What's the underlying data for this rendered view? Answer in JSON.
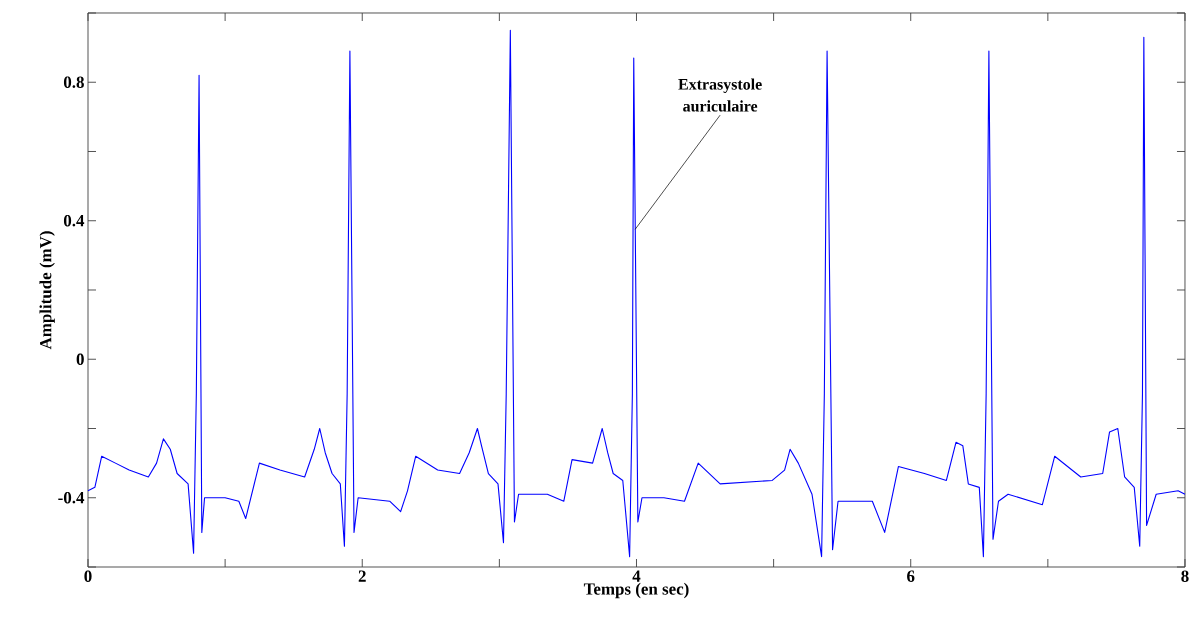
{
  "chart_data": {
    "type": "line",
    "xlabel": "Temps (en sec)",
    "ylabel": "Amplitude (mV)",
    "xlim": [
      0,
      8
    ],
    "ylim": [
      -0.6,
      1.0
    ],
    "xticks": [
      0,
      {
        "value": 1,
        "label": null
      },
      2,
      {
        "value": 3,
        "label": null
      },
      4,
      {
        "value": 5,
        "label": null
      },
      6,
      {
        "value": 7,
        "label": null
      },
      8
    ],
    "yticks": [
      {
        "value": -0.6,
        "label": null
      },
      -0.4,
      {
        "value": -0.2,
        "label": null
      },
      0,
      {
        "value": 0.2,
        "label": null
      },
      0.4,
      {
        "value": 0.6,
        "label": null
      },
      0.8,
      {
        "value": 1.0,
        "label": null
      }
    ],
    "annotations": [
      {
        "text": "Extrasystole auriculaire",
        "x": 3.99,
        "y": 0.375
      }
    ],
    "series": [
      {
        "color": "#0000ff",
        "x": [
          0.0,
          0.05,
          0.1,
          0.2,
          0.3,
          0.44,
          0.5,
          0.55,
          0.6,
          0.65,
          0.73,
          0.77,
          0.79,
          0.81,
          0.83,
          0.85,
          1.0,
          1.1,
          1.15,
          1.2,
          1.25,
          1.4,
          1.58,
          1.65,
          1.69,
          1.73,
          1.78,
          1.84,
          1.87,
          1.89,
          1.91,
          1.94,
          1.97,
          2.2,
          2.28,
          2.33,
          2.39,
          2.55,
          2.71,
          2.78,
          2.84,
          2.87,
          2.92,
          2.99,
          3.03,
          3.05,
          3.08,
          3.11,
          3.14,
          3.35,
          3.47,
          3.53,
          3.68,
          3.75,
          3.79,
          3.83,
          3.9,
          3.95,
          3.97,
          3.98,
          4.01,
          4.04,
          4.2,
          4.35,
          4.45,
          4.61,
          4.99,
          5.08,
          5.12,
          5.18,
          5.28,
          5.35,
          5.37,
          5.39,
          5.43,
          5.47,
          5.72,
          5.81,
          5.91,
          6.1,
          6.26,
          6.33,
          6.38,
          6.42,
          6.5,
          6.53,
          6.55,
          6.57,
          6.6,
          6.64,
          6.71,
          6.96,
          7.05,
          7.24,
          7.4,
          7.45,
          7.51,
          7.56,
          7.63,
          7.67,
          7.69,
          7.7,
          7.72,
          7.79,
          7.95,
          8.0
        ],
        "values": [
          -0.38,
          -0.37,
          -0.28,
          -0.3,
          -0.32,
          -0.34,
          -0.3,
          -0.23,
          -0.26,
          -0.33,
          -0.36,
          -0.56,
          -0.1,
          0.82,
          -0.5,
          -0.4,
          -0.4,
          -0.41,
          -0.46,
          -0.38,
          -0.3,
          -0.32,
          -0.34,
          -0.26,
          -0.2,
          -0.27,
          -0.33,
          -0.36,
          -0.54,
          -0.1,
          0.89,
          -0.5,
          -0.4,
          -0.41,
          -0.44,
          -0.38,
          -0.28,
          -0.32,
          -0.33,
          -0.27,
          -0.2,
          -0.25,
          -0.33,
          -0.36,
          -0.53,
          -0.1,
          0.95,
          -0.47,
          -0.39,
          -0.39,
          -0.41,
          -0.29,
          -0.3,
          -0.2,
          -0.27,
          -0.33,
          -0.35,
          -0.57,
          -0.1,
          0.87,
          -0.47,
          -0.4,
          -0.4,
          -0.41,
          -0.3,
          -0.36,
          -0.35,
          -0.32,
          -0.26,
          -0.3,
          -0.39,
          -0.57,
          -0.1,
          0.89,
          -0.55,
          -0.41,
          -0.41,
          -0.5,
          -0.31,
          -0.33,
          -0.35,
          -0.24,
          -0.25,
          -0.36,
          -0.37,
          -0.57,
          -0.1,
          0.89,
          -0.52,
          -0.41,
          -0.39,
          -0.42,
          -0.28,
          -0.34,
          -0.33,
          -0.21,
          -0.2,
          -0.34,
          -0.37,
          -0.54,
          -0.1,
          0.93,
          -0.48,
          -0.39,
          -0.38,
          -0.39
        ]
      }
    ]
  }
}
